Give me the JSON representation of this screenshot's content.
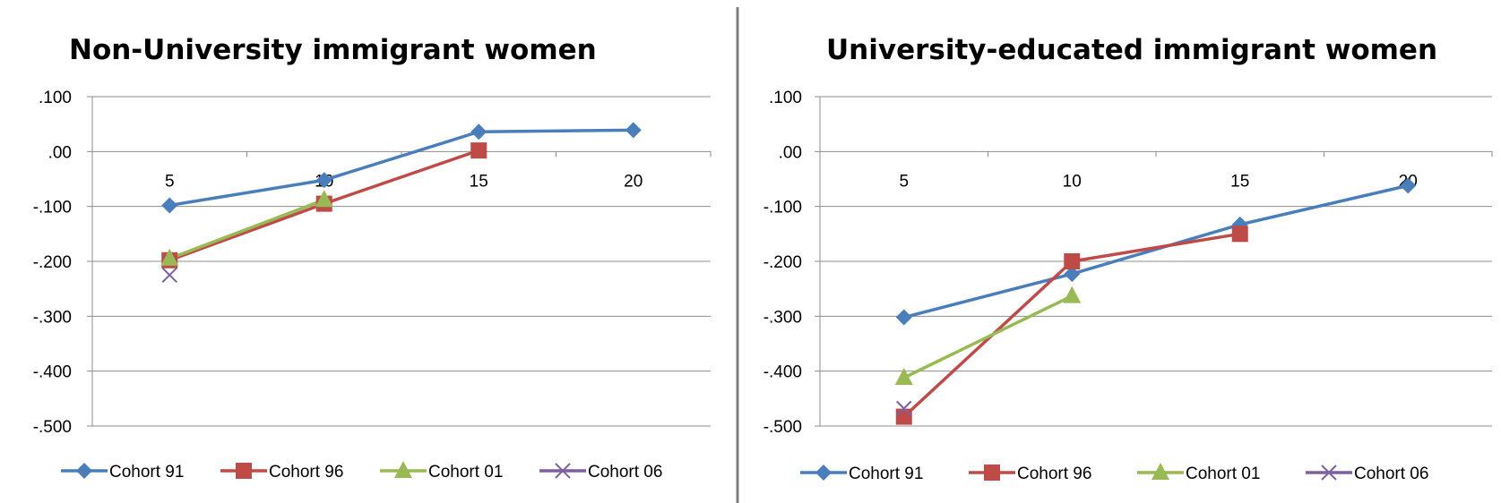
{
  "chart_data": [
    {
      "type": "line",
      "title": "Non-University immigrant women",
      "xlabel": "",
      "ylabel": "",
      "x": [
        5,
        10,
        15,
        20
      ],
      "x_tick_labels": [
        "5",
        "10",
        "15",
        "20"
      ],
      "ylim": [
        -0.5,
        0.1
      ],
      "y_ticks": [
        0.1,
        0.0,
        -0.1,
        -0.2,
        -0.3,
        -0.4,
        -0.5
      ],
      "y_tick_labels": [
        ".100",
        ".00",
        "-.100",
        "-.200",
        "-.300",
        "-.400",
        "-.500"
      ],
      "grid": true,
      "legend_position": "bottom",
      "series": [
        {
          "name": "Cohort 91",
          "color": "#4A7EBB",
          "marker": "diamond",
          "values": [
            -0.098,
            -0.052,
            0.036,
            0.039
          ]
        },
        {
          "name": "Cohort 96",
          "color": "#BE4B48",
          "marker": "square",
          "values": [
            -0.198,
            -0.095,
            0.002,
            null
          ]
        },
        {
          "name": "Cohort 01",
          "color": "#98B954",
          "marker": "triangle",
          "values": [
            -0.195,
            -0.088,
            null,
            null
          ]
        },
        {
          "name": "Cohort 06",
          "color": "#7D60A0",
          "marker": "x",
          "values": [
            -0.225,
            null,
            null,
            null
          ]
        }
      ]
    },
    {
      "type": "line",
      "title": "University-educated immigrant women",
      "xlabel": "",
      "ylabel": "",
      "x": [
        5,
        10,
        15,
        20
      ],
      "x_tick_labels": [
        "5",
        "10",
        "15",
        "20"
      ],
      "ylim": [
        -0.5,
        0.1
      ],
      "y_ticks": [
        0.1,
        0.0,
        -0.1,
        -0.2,
        -0.3,
        -0.4,
        -0.5
      ],
      "y_tick_labels": [
        ".100",
        ".00",
        "-.100",
        "-.200",
        "-.300",
        "-.400",
        "-.500"
      ],
      "grid": true,
      "legend_position": "bottom",
      "series": [
        {
          "name": "Cohort 91",
          "color": "#4A7EBB",
          "marker": "diamond",
          "values": [
            -0.302,
            -0.223,
            -0.133,
            -0.062
          ]
        },
        {
          "name": "Cohort 96",
          "color": "#BE4B48",
          "marker": "square",
          "values": [
            -0.483,
            -0.2,
            -0.15,
            null
          ]
        },
        {
          "name": "Cohort 01",
          "color": "#98B954",
          "marker": "triangle",
          "values": [
            -0.412,
            -0.263,
            null,
            null
          ]
        },
        {
          "name": "Cohort 06",
          "color": "#7D60A0",
          "marker": "x",
          "values": [
            -0.468,
            null,
            null,
            null
          ]
        }
      ]
    }
  ],
  "divider_color": "#808080"
}
